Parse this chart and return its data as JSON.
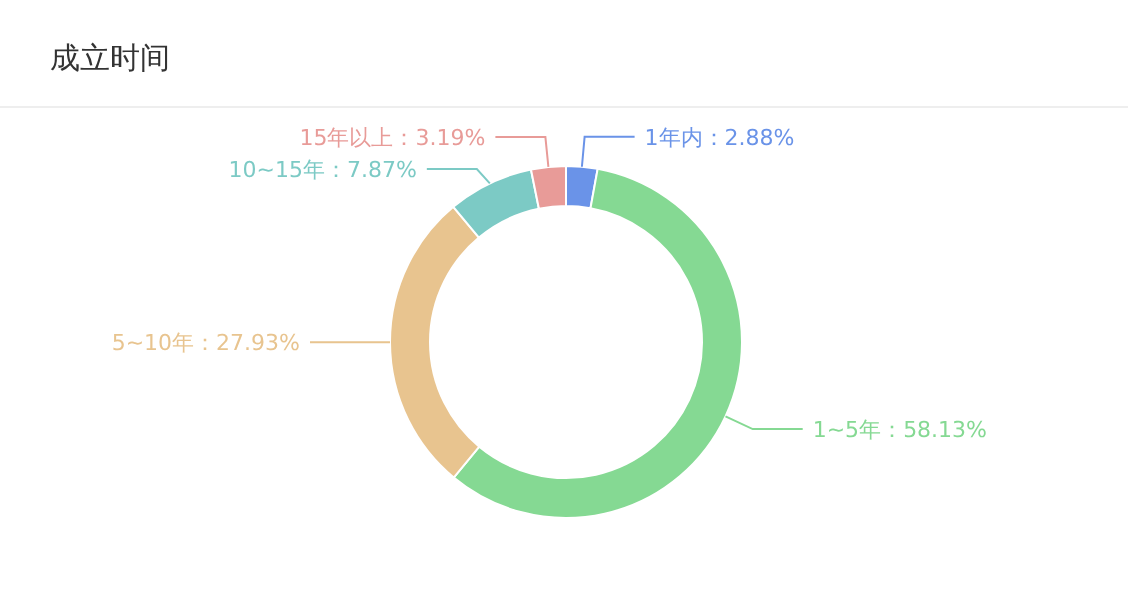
{
  "chart_data": {
    "type": "donut",
    "title": "成立时间",
    "categories": [
      "1年内",
      "1~5年",
      "5~10年",
      "10~15年",
      "15年以上"
    ],
    "values": [
      2.88,
      58.13,
      27.93,
      7.87,
      3.19
    ],
    "colors": [
      "#6a93e8",
      "#85d993",
      "#e8c48f",
      "#7ccac5",
      "#e89b98"
    ],
    "value_labels": [
      "：2.88%",
      "：58.13%",
      "：27.93%",
      "：7.87%",
      "：3.19%"
    ]
  }
}
